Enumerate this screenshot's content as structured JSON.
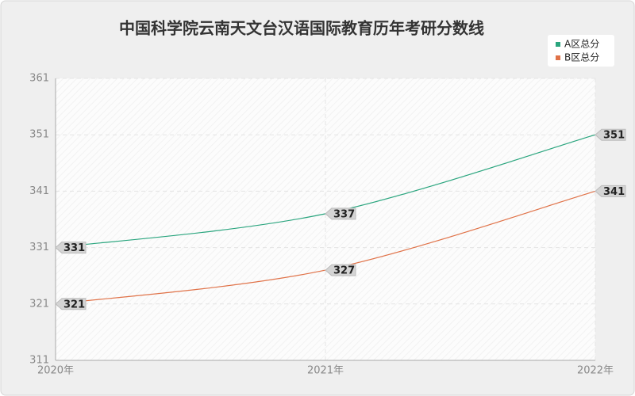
{
  "chart_data": {
    "type": "line",
    "title": "中国科学院云南天文台汉语国际教育历年考研分数线",
    "categories": [
      "2020年",
      "2021年",
      "2022年"
    ],
    "series": [
      {
        "name": "A区总分",
        "color": "#2aa57e",
        "values": [
          331,
          337,
          351
        ]
      },
      {
        "name": "B区总分",
        "color": "#e07248",
        "values": [
          321,
          327,
          341
        ]
      }
    ],
    "ylim": [
      311,
      361
    ],
    "yticks": [
      311,
      321,
      331,
      341,
      351,
      361
    ],
    "grid": true,
    "legend": "top-right"
  }
}
